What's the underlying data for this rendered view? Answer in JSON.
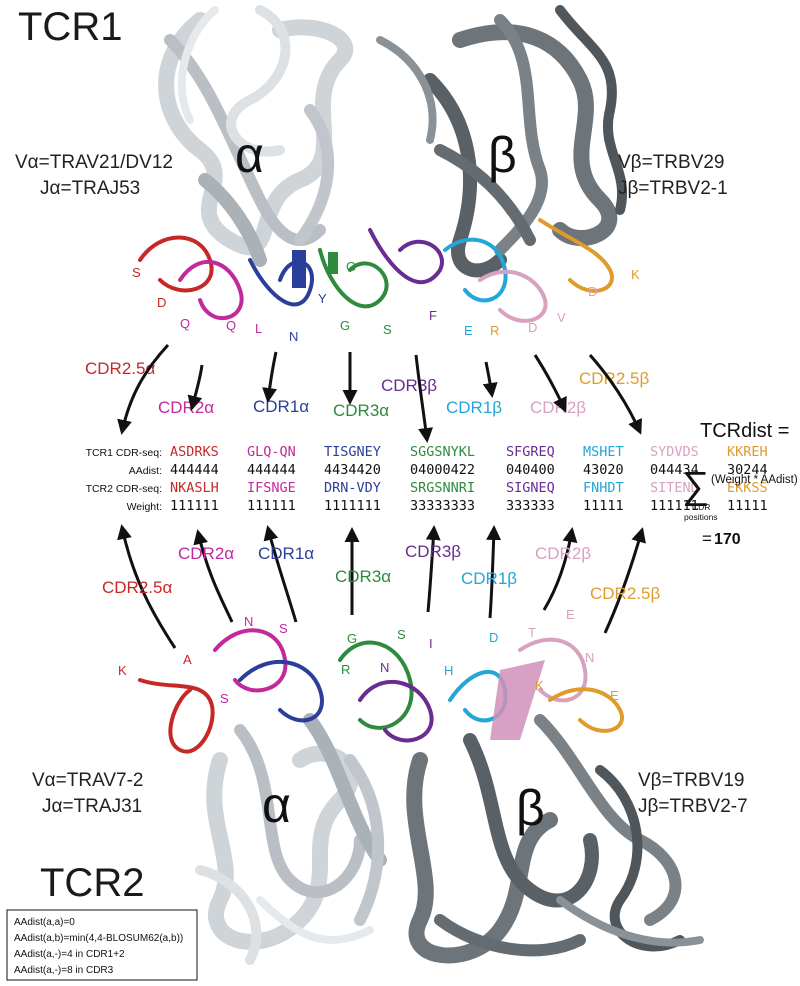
{
  "title_top": "TCR1",
  "title_bottom": "TCR2",
  "tcr1": {
    "alpha_chain": "α",
    "beta_chain": "β",
    "v_alpha": "Vα=TRAV21/DV12",
    "j_alpha": "Jα=TRAJ53",
    "v_beta": "Vβ=TRBV29",
    "j_beta": "Jβ=TRBV2-1",
    "residues": [
      "S",
      "D",
      "Q",
      "Q",
      "L",
      "N",
      "Y",
      "G",
      "G",
      "S",
      "F",
      "E",
      "R",
      "D",
      "V",
      "D",
      "K"
    ]
  },
  "tcr2": {
    "alpha_chain": "α",
    "beta_chain": "β",
    "v_alpha": "Vα=TRAV7-2",
    "j_alpha": "Jα=TRAJ31",
    "v_beta": "Vβ=TRBV19",
    "j_beta": "Jβ=TRBV2-7",
    "residues": [
      "K",
      "A",
      "S",
      "N",
      "S",
      "G",
      "S",
      "R",
      "N",
      "I",
      "H",
      "D",
      "T",
      "E",
      "N",
      "K",
      "E"
    ]
  },
  "cdr_labels_top": [
    "CDR2.5α",
    "CDR2α",
    "CDR1α",
    "CDR3α",
    "CDR3β",
    "CDR1β",
    "CDR2β",
    "CDR2.5β"
  ],
  "cdr_labels_bottom": [
    "CDR2.5α",
    "CDR2α",
    "CDR1α",
    "CDR3α",
    "CDR3β",
    "CDR1β",
    "CDR2β",
    "CDR2.5β"
  ],
  "table": {
    "row_labels": [
      "TCR1 CDR-seq:",
      "AAdist:",
      "TCR2 CDR-seq:",
      "Weight:"
    ],
    "tcr1_seq": [
      "ASDRKS",
      "GLQ-QN",
      "TISGNEY",
      "SGGSNYKL",
      "SFGREQ",
      "MSHET",
      "SYDVDS",
      "KKREH"
    ],
    "aadist": [
      "444444",
      "444444",
      "4434420",
      "04000422",
      "040400",
      "43020",
      "044434",
      "30244"
    ],
    "tcr2_seq": [
      "NKASLH",
      "IFSNGE",
      "DRN-VDY",
      "SRGSNNRI",
      "SIGNEQ",
      "FNHDT",
      "SITEND",
      "EKKSS"
    ],
    "weight": [
      "111111",
      "111111",
      "1111111",
      "33333333",
      "333333",
      "11111",
      "111111",
      "11111"
    ]
  },
  "formula": {
    "label": "TCRdist =",
    "sigma": "∑",
    "term": "(Weight * AAdist)",
    "subscript_1": "CDR",
    "subscript_2": "positions",
    "result_eq": "=",
    "result": "170"
  },
  "legend": [
    "AAdist(a,a)=0",
    "AAdist(a,b)=min(4,4-BLOSUM62(a,b))",
    "AAdist(a,-)=4 in CDR1+2",
    "AAdist(a,-)=8 in CDR3"
  ],
  "colors": {
    "cdr25a": "#c62828",
    "cdr2a": "#c2299a",
    "cdr1a": "#2b3f9a",
    "cdr3a": "#2e8b3e",
    "cdr3b": "#6a2c91",
    "cdr1b": "#24a6d6",
    "cdr2b": "#d8a1c0",
    "cdr25b": "#e09b2d",
    "chain_alpha": "#c4c9ce",
    "chain_beta": "#5f676d"
  }
}
